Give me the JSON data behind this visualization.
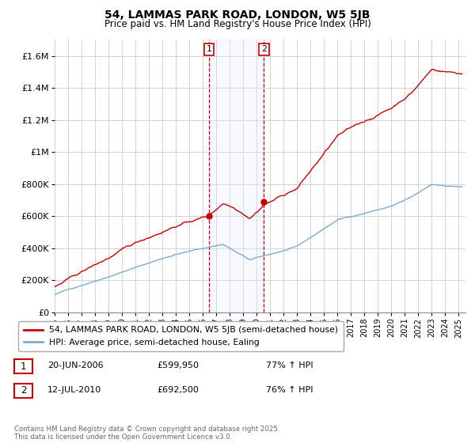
{
  "title1": "54, LAMMAS PARK ROAD, LONDON, W5 5JB",
  "title2": "Price paid vs. HM Land Registry's House Price Index (HPI)",
  "legend_line1": "54, LAMMAS PARK ROAD, LONDON, W5 5JB (semi-detached house)",
  "legend_line2": "HPI: Average price, semi-detached house, Ealing",
  "sale1_label": "1",
  "sale1_date": "20-JUN-2006",
  "sale1_price_str": "£599,950",
  "sale1_hpi": "77% ↑ HPI",
  "sale1_year": 2006.47,
  "sale1_price": 599950,
  "sale2_label": "2",
  "sale2_date": "12-JUL-2010",
  "sale2_price_str": "£692,500",
  "sale2_hpi": "76% ↑ HPI",
  "sale2_year": 2010.54,
  "sale2_price": 692500,
  "footer": "Contains HM Land Registry data © Crown copyright and database right 2025.\nThis data is licensed under the Open Government Licence v3.0.",
  "line_color_red": "#cc0000",
  "line_color_blue": "#7aadcf",
  "annotation_box_color": "#cc0000",
  "shading_color": "#ddeeff",
  "ylim_max": 1700000,
  "ylim_min": 0,
  "yticks": [
    0,
    200000,
    400000,
    600000,
    800000,
    1000000,
    1200000,
    1400000,
    1600000
  ],
  "ytick_labels": [
    "£0",
    "£200K",
    "£400K",
    "£600K",
    "£800K",
    "£1M",
    "£1.2M",
    "£1.4M",
    "£1.6M"
  ],
  "xmin": 1995,
  "xmax": 2025.5
}
